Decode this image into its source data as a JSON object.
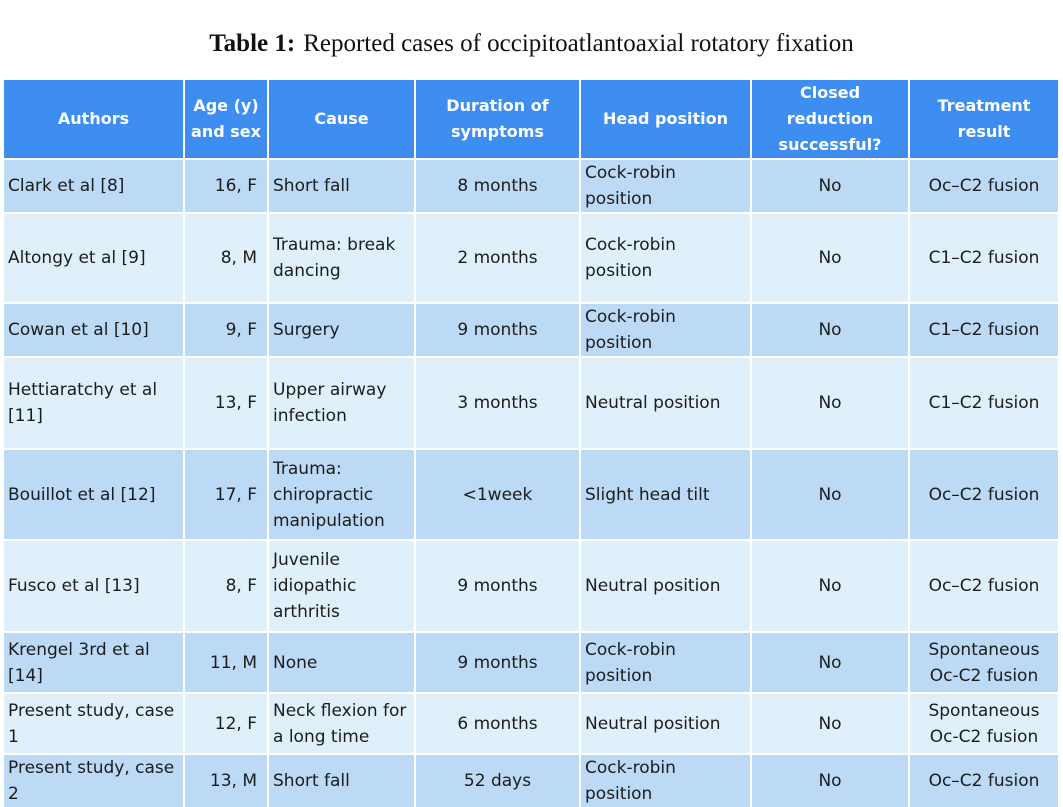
{
  "title": {
    "label": "Table 1:",
    "text": "Reported cases of occipitoatlantoaxial rotatory fixation"
  },
  "headers": {
    "authors": "Authors",
    "age_sex": "Age (y) and sex",
    "cause": "Cause",
    "duration": "Duration of symptoms",
    "head_position": "Head position",
    "closed_reduction": "Closed reduction successful?",
    "treatment": "Treatment result"
  },
  "rows": [
    {
      "authors": "Clark et al [8]",
      "age_sex": "16, F",
      "cause": "Short fall",
      "duration": "8 months",
      "head_position": "Cock-robin position",
      "closed_reduction": "No",
      "treatment": "Oc–C2 fusion"
    },
    {
      "authors": "Altongy et al [9]",
      "age_sex": "8, M",
      "cause": "Trauma: break dancing",
      "duration": "2 months",
      "head_position": "Cock-robin position",
      "closed_reduction": "No",
      "treatment": "C1–C2 fusion"
    },
    {
      "authors": "Cowan et al [10]",
      "age_sex": "9, F",
      "cause": "Surgery",
      "duration": "9 months",
      "head_position": "Cock-robin position",
      "closed_reduction": "No",
      "treatment": "C1–C2 fusion"
    },
    {
      "authors": "Hettiaratchy et al [11]",
      "age_sex": "13, F",
      "cause": "Upper airway infection",
      "duration": "3 months",
      "head_position": "Neutral position",
      "closed_reduction": "No",
      "treatment": "C1–C2 fusion"
    },
    {
      "authors": "Bouillot et al [12]",
      "age_sex": "17, F",
      "cause": "Trauma: chiropractic manipulation",
      "duration": "<1week",
      "head_position": "Slight head tilt",
      "closed_reduction": "No",
      "treatment": "Oc–C2 fusion"
    },
    {
      "authors": "Fusco et al [13]",
      "age_sex": "8, F",
      "cause": "Juvenile idiopathic arthritis",
      "duration": "9 months",
      "head_position": "Neutral position",
      "closed_reduction": "No",
      "treatment": "Oc–C2 fusion"
    },
    {
      "authors": "Krengel 3rd et al [14]",
      "age_sex": "11, M",
      "cause": "None",
      "duration": "9 months",
      "head_position": "Cock-robin position",
      "closed_reduction": "No",
      "treatment": "Spontaneous Oc-C2 fusion"
    },
    {
      "authors": "Present study, case 1",
      "age_sex": "12, F",
      "cause": "Neck flexion for a long time",
      "duration": "6 months",
      "head_position": "Neutral position",
      "closed_reduction": "No",
      "treatment": "Spontaneous Oc-C2 fusion"
    },
    {
      "authors": "Present study, case 2",
      "age_sex": "13, M",
      "cause": "Short fall",
      "duration": "52 days",
      "head_position": "Cock-robin position",
      "closed_reduction": "No",
      "treatment": "Oc–C2 fusion"
    }
  ],
  "colors": {
    "header_bg": "#3d8ef0",
    "row_dark": "#bcd9f5",
    "row_light": "#dff0fb"
  }
}
